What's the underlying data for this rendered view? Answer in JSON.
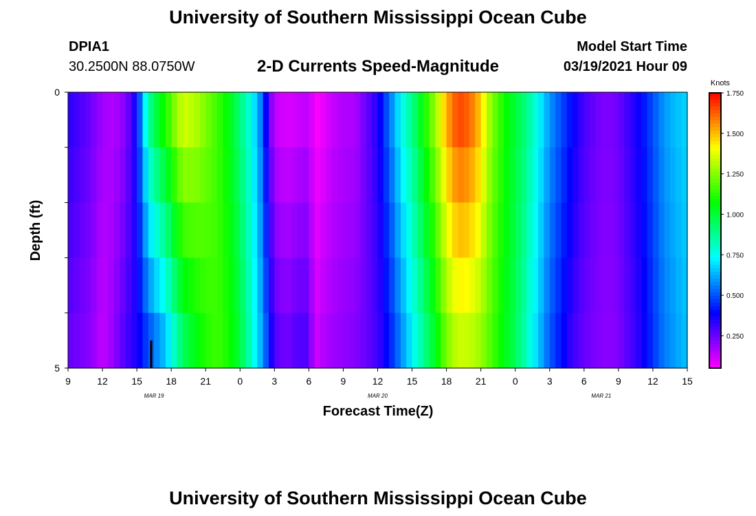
{
  "page_title": "University of Southern Mississippi Ocean Cube",
  "footer_title": "University of Southern Mississippi Ocean Cube",
  "station": {
    "id": "DPIA1",
    "coords": "30.2500N 88.0750W"
  },
  "model": {
    "label": "Model Start Time",
    "time": "03/19/2021 Hour 09"
  },
  "chart_data": {
    "type": "heatmap",
    "title": "2-D Currents Speed-Magnitude",
    "xlabel": "Forecast Time(Z)",
    "ylabel": "Depth (ft)",
    "ylim": [
      0,
      5
    ],
    "ytick_labels": [
      "0",
      "5"
    ],
    "xlim_hours": [
      0,
      54
    ],
    "xtick_labels": [
      "9",
      "12",
      "15",
      "18",
      "21",
      "0",
      "3",
      "6",
      "9",
      "12",
      "15",
      "18",
      "21",
      "0",
      "3",
      "6",
      "9",
      "12",
      "15"
    ],
    "date_labels": [
      {
        "label": "MAR 19",
        "hour": 7.5
      },
      {
        "label": "MAR 20",
        "hour": 27
      },
      {
        "label": "MAR 21",
        "hour": 46.5
      }
    ],
    "colorbar": {
      "unit": "Knots",
      "min": 0.05,
      "max": 1.75,
      "ticks": [
        "1.750",
        "1.500",
        "1.250",
        "1.000",
        "0.750",
        "0.500",
        "0.250"
      ],
      "tick_values": [
        1.75,
        1.5,
        1.25,
        1.0,
        0.75,
        0.5,
        0.25
      ]
    },
    "depth_layers": [
      0,
      1,
      2,
      3,
      4,
      5
    ],
    "profile_hours": [
      0,
      2,
      3,
      4,
      5,
      6,
      7,
      7.5,
      8,
      8.5,
      9,
      10,
      11,
      12,
      13,
      14,
      15,
      16,
      17,
      17.5,
      18,
      19,
      20,
      21,
      21.5,
      22,
      23,
      24,
      25,
      26,
      27,
      28,
      29,
      30,
      31,
      32,
      33,
      34,
      35,
      36,
      36.5,
      37,
      38,
      39,
      40,
      41,
      42,
      43,
      44,
      45,
      46,
      47,
      48,
      49,
      50,
      51,
      52,
      53,
      54
    ],
    "surface_profile": [
      0.35,
      0.25,
      0.18,
      0.15,
      0.2,
      0.4,
      0.9,
      1.0,
      1.1,
      1.15,
      1.25,
      1.4,
      1.35,
      1.25,
      1.15,
      1.05,
      0.9,
      0.75,
      0.5,
      0.25,
      0.12,
      0.08,
      0.1,
      0.12,
      0.05,
      0.05,
      0.12,
      0.15,
      0.15,
      0.25,
      0.35,
      0.55,
      0.75,
      0.9,
      1.1,
      1.3,
      1.55,
      1.7,
      1.65,
      1.5,
      1.35,
      1.25,
      1.1,
      1.0,
      0.9,
      0.75,
      0.6,
      0.5,
      0.4,
      0.3,
      0.25,
      0.22,
      0.25,
      0.32,
      0.4,
      0.5,
      0.6,
      0.65,
      0.68
    ],
    "bottom_profile": [
      0.25,
      0.2,
      0.12,
      0.2,
      0.3,
      0.35,
      0.45,
      0.5,
      0.55,
      0.6,
      0.7,
      0.9,
      1.0,
      1.1,
      1.15,
      1.1,
      1.0,
      0.8,
      0.6,
      0.45,
      0.3,
      0.25,
      0.3,
      0.3,
      0.1,
      0.15,
      0.18,
      0.2,
      0.22,
      0.25,
      0.3,
      0.4,
      0.55,
      0.7,
      0.85,
      1.0,
      1.2,
      1.3,
      1.3,
      1.25,
      1.2,
      1.15,
      1.05,
      0.95,
      0.8,
      0.65,
      0.5,
      0.4,
      0.3,
      0.25,
      0.22,
      0.2,
      0.22,
      0.28,
      0.35,
      0.45,
      0.55,
      0.6,
      0.65
    ],
    "missing_cells": [
      {
        "hour_start": 7.15,
        "hour_end": 7.35,
        "depth_start": 4.5,
        "depth_end": 5
      }
    ]
  }
}
